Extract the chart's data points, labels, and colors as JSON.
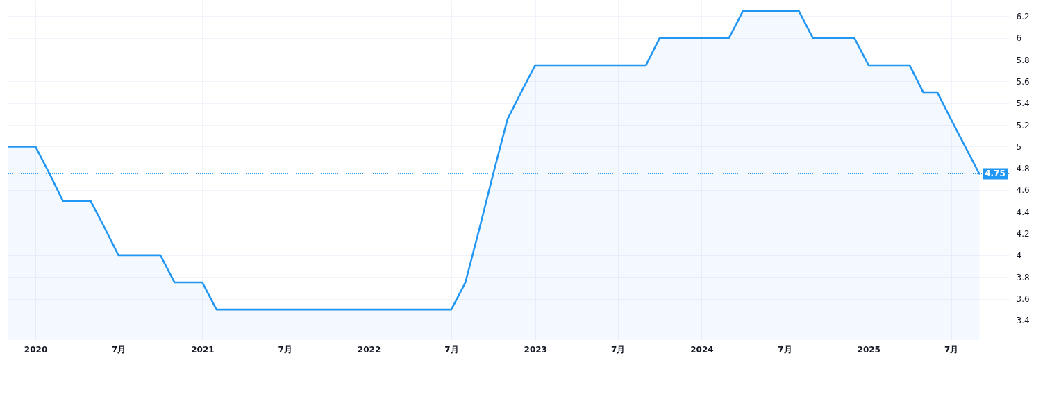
{
  "chart_data": {
    "type": "area",
    "x": [
      "2019-11",
      "2019-12",
      "2020-01",
      "2020-02",
      "2020-03",
      "2020-04",
      "2020-05",
      "2020-06",
      "2020-07",
      "2020-08",
      "2020-09",
      "2020-10",
      "2020-11",
      "2020-12",
      "2021-01",
      "2021-02",
      "2021-03",
      "2021-04",
      "2021-05",
      "2021-06",
      "2021-07",
      "2021-08",
      "2021-09",
      "2021-10",
      "2021-11",
      "2021-12",
      "2022-01",
      "2022-02",
      "2022-03",
      "2022-04",
      "2022-05",
      "2022-06",
      "2022-07",
      "2022-08",
      "2022-09",
      "2022-10",
      "2022-11",
      "2022-12",
      "2023-01",
      "2023-02",
      "2023-03",
      "2023-04",
      "2023-05",
      "2023-06",
      "2023-07",
      "2023-08",
      "2023-09",
      "2023-10",
      "2023-11",
      "2023-12",
      "2024-01",
      "2024-02",
      "2024-03",
      "2024-04",
      "2024-05",
      "2024-06",
      "2024-07",
      "2024-08",
      "2024-09",
      "2024-10",
      "2024-11",
      "2024-12",
      "2025-01",
      "2025-02",
      "2025-03",
      "2025-04",
      "2025-05",
      "2025-06",
      "2025-07",
      "2025-08",
      "2025-09"
    ],
    "series": [
      {
        "color": "#2196f3",
        "values": [
          5,
          5,
          5,
          4.75,
          4.5,
          4.5,
          4.5,
          4.25,
          4,
          4,
          4,
          4,
          3.75,
          3.75,
          3.75,
          3.5,
          3.5,
          3.5,
          3.5,
          3.5,
          3.5,
          3.5,
          3.5,
          3.5,
          3.5,
          3.5,
          3.5,
          3.5,
          3.5,
          3.5,
          3.5,
          3.5,
          3.5,
          3.75,
          4.25,
          4.75,
          5.25,
          5.5,
          5.75,
          5.75,
          5.75,
          5.75,
          5.75,
          5.75,
          5.75,
          5.75,
          5.75,
          6,
          6,
          6,
          6,
          6,
          6,
          6.25,
          6.25,
          6.25,
          6.25,
          6.25,
          6,
          6,
          6,
          6,
          5.75,
          5.75,
          5.75,
          5.75,
          5.5,
          5.5,
          5.25,
          5,
          4.75
        ]
      }
    ],
    "xlim": [
      "2019-11",
      "2025-11-05"
    ],
    "xticks": [
      {
        "value": "2020-01",
        "label": "2020"
      },
      {
        "value": "2020-07",
        "label": "7月"
      },
      {
        "value": "2021-01",
        "label": "2021"
      },
      {
        "value": "2021-07",
        "label": "7月"
      },
      {
        "value": "2022-01",
        "label": "2022"
      },
      {
        "value": "2022-07",
        "label": "7月"
      },
      {
        "value": "2023-01",
        "label": "2023"
      },
      {
        "value": "2023-07",
        "label": "7月"
      },
      {
        "value": "2024-01",
        "label": "2024"
      },
      {
        "value": "2024-07",
        "label": "7月"
      },
      {
        "value": "2025-01",
        "label": "2025"
      },
      {
        "value": "2025-07",
        "label": "7月"
      }
    ],
    "ylim": [
      3.22,
      6.35
    ],
    "yticks": [
      3.4,
      3.6,
      3.8,
      4,
      4.2,
      4.4,
      4.6,
      4.8,
      5,
      5.2,
      5.4,
      5.6,
      5.8,
      6,
      6.2
    ],
    "grid": true,
    "ref_lines": [
      {
        "axis": "y",
        "value": 4.75,
        "label": "4.75",
        "color": "#2196f3",
        "line_style": "dotted"
      }
    ]
  }
}
